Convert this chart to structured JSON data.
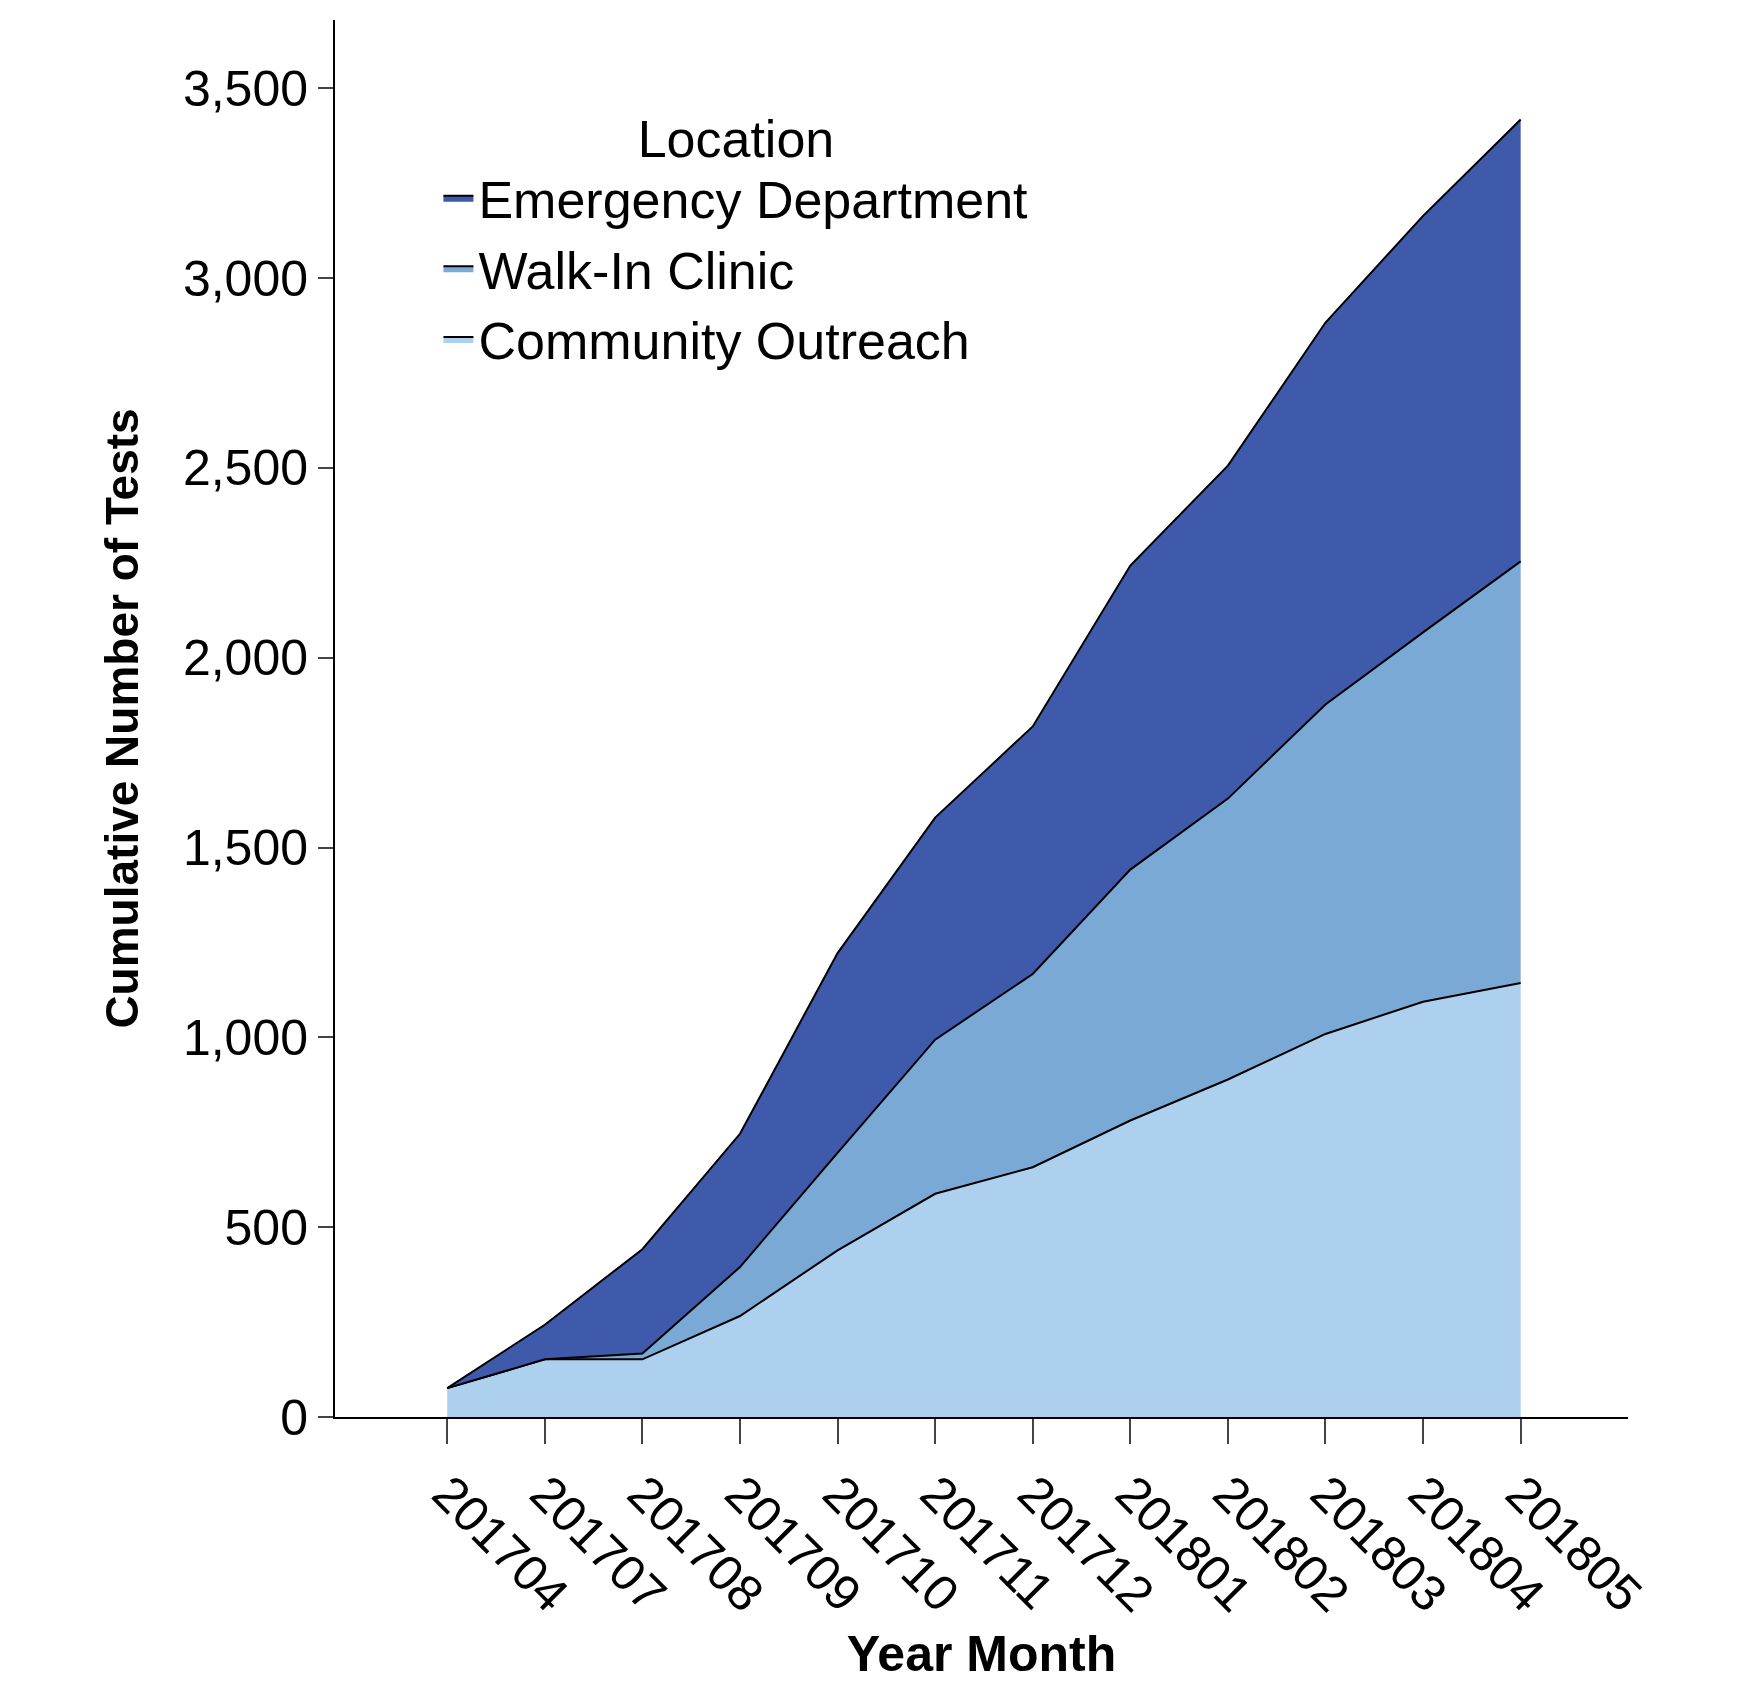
{
  "chart_data": {
    "type": "area",
    "stacked": true,
    "xlabel": "Year Month",
    "ylabel": "Cumulative Number of Tests",
    "legend_title": "Location",
    "legend": "top left",
    "grid": false,
    "categories": [
      "201704",
      "201707",
      "201708",
      "201709",
      "201710",
      "201711",
      "201712",
      "201801",
      "201802",
      "201803",
      "201804",
      "201805"
    ],
    "ylim": [
      0,
      3680
    ],
    "yticks": [
      0,
      500,
      {
        "value": 1000,
        "label": "1,000"
      },
      {
        "value": 1500,
        "label": "1,500"
      },
      {
        "value": 2000,
        "label": "2,000"
      },
      {
        "value": 2500,
        "label": "2,500"
      },
      {
        "value": 3000,
        "label": "3,000"
      },
      {
        "value": 3500,
        "label": "3,500"
      }
    ],
    "series": [
      {
        "name": "Community Outreach",
        "color": "#acd0ed",
        "values": [
          76,
          152,
          152,
          266,
          439,
          588,
          658,
          781,
          889,
          1009,
          1094,
          1143
        ]
      },
      {
        "name": "Walk-In Clinic",
        "color": "#7ba9d6",
        "values": [
          0,
          0,
          15,
          129,
          257,
          406,
          509,
          661,
          740,
          868,
          973,
          1111
        ]
      },
      {
        "name": "Emergency Department",
        "color": "#3f59ab",
        "values": [
          0,
          91,
          275,
          351,
          526,
          585,
          652,
          801,
          877,
          1006,
          1097,
          1164
        ]
      }
    ]
  }
}
